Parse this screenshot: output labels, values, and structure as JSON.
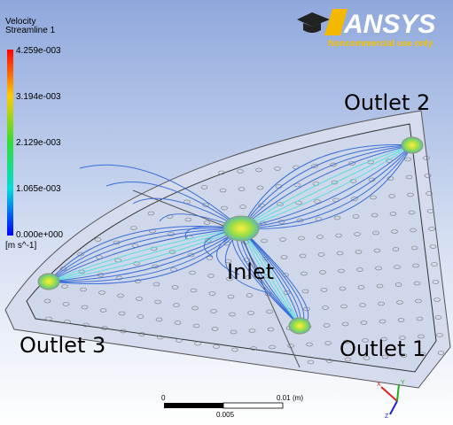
{
  "legend": {
    "title": "Velocity",
    "subtitle": "Streamline 1",
    "labels": [
      "4.259e-003",
      "3.194e-003",
      "2.129e-003",
      "1.065e-003",
      "0.000e+000"
    ],
    "unit": "[m s^-1]"
  },
  "logo": {
    "name": "ANSYS",
    "note": "Noncommercial use only"
  },
  "annotations": {
    "outlet2": "Outlet 2",
    "inlet": "Inlet",
    "outlet3": "Outlet 3",
    "outlet1": "Outlet 1"
  },
  "scale_bar": {
    "start": "0",
    "end": "0.01",
    "unit": "(m)",
    "mid": "0.005"
  },
  "triad": {
    "x": "X",
    "y": "Y",
    "z": "Z"
  }
}
